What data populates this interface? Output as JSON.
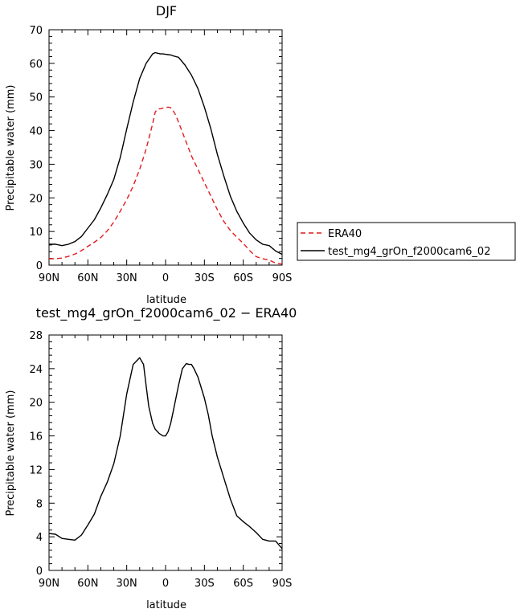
{
  "chart_data": [
    {
      "type": "line",
      "title": "DJF",
      "xlabel": "latitude",
      "ylabel": "Precipitable water (mm)",
      "xlim": [
        90,
        -90
      ],
      "ylim": [
        0,
        70
      ],
      "x_ticks": [
        90,
        60,
        30,
        0,
        -30,
        -60,
        -90
      ],
      "x_tick_labels": [
        "90N",
        "60N",
        "30N",
        "0",
        "30S",
        "60S",
        "90S"
      ],
      "y_ticks": [
        0,
        10,
        20,
        30,
        40,
        50,
        60,
        70
      ],
      "y_tick_labels": [
        "0",
        "10",
        "20",
        "30",
        "40",
        "50",
        "60",
        "70"
      ],
      "grid": false,
      "legend": "right",
      "series": [
        {
          "name": "ERA40",
          "color": "#e41a1c",
          "dash": "dashed",
          "x": [
            90,
            85,
            80,
            75,
            70,
            65,
            60,
            55,
            50,
            45,
            40,
            35,
            30,
            25,
            20,
            15,
            10,
            8,
            6,
            4,
            2,
            0,
            -2,
            -4,
            -6,
            -8,
            -10,
            -15,
            -20,
            -25,
            -30,
            -35,
            -40,
            -45,
            -50,
            -55,
            -60,
            -65,
            -70,
            -75,
            -80,
            -85,
            -90
          ],
          "y": [
            1.9,
            1.9,
            2.1,
            2.6,
            3.3,
            4.3,
            5.6,
            6.8,
            8.2,
            10.2,
            12.8,
            16.0,
            19.5,
            23.5,
            28.5,
            34.5,
            42.0,
            45.5,
            46.5,
            46.5,
            46.7,
            46.8,
            47.0,
            46.8,
            45.8,
            44.5,
            42.5,
            37.5,
            32.5,
            28.5,
            24.5,
            20.5,
            16.5,
            13.0,
            10.3,
            8.3,
            6.5,
            4.3,
            2.5,
            1.9,
            1.5,
            0.6,
            0.3
          ]
        },
        {
          "name": "test_mg4_grOn_f2000cam6_02",
          "color": "#000000",
          "dash": "solid",
          "x": [
            90,
            85,
            80,
            75,
            70,
            65,
            60,
            55,
            50,
            45,
            40,
            35,
            30,
            25,
            20,
            15,
            10,
            8,
            6,
            4,
            2,
            0,
            -2,
            -4,
            -6,
            -8,
            -10,
            -15,
            -20,
            -25,
            -30,
            -35,
            -40,
            -45,
            -50,
            -55,
            -60,
            -65,
            -70,
            -75,
            -80,
            -85,
            -90
          ],
          "y": [
            6.2,
            6.2,
            5.8,
            6.2,
            7.0,
            8.5,
            11.0,
            13.5,
            17.0,
            21.0,
            25.5,
            32.0,
            40.5,
            48.5,
            55.5,
            60.0,
            62.8,
            63.2,
            63.0,
            62.8,
            62.8,
            62.7,
            62.6,
            62.5,
            62.2,
            62.0,
            61.8,
            59.5,
            56.5,
            52.5,
            47.0,
            40.5,
            33.0,
            26.5,
            20.5,
            16.0,
            12.5,
            9.5,
            7.5,
            6.2,
            5.8,
            4.2,
            3.2
          ]
        }
      ]
    },
    {
      "type": "line",
      "title": "test_mg4_grOn_f2000cam6_02 − ERA40",
      "xlabel": "latitude",
      "ylabel": "Precipitable water (mm)",
      "xlim": [
        90,
        -90
      ],
      "ylim": [
        0,
        28
      ],
      "x_ticks": [
        90,
        60,
        30,
        0,
        -30,
        -60,
        -90
      ],
      "x_tick_labels": [
        "90N",
        "60N",
        "30N",
        "0",
        "30S",
        "60S",
        "90S"
      ],
      "y_ticks": [
        0,
        4,
        8,
        12,
        16,
        20,
        24,
        28
      ],
      "y_tick_labels": [
        "0",
        "4",
        "8",
        "12",
        "16",
        "20",
        "24",
        "28"
      ],
      "grid": false,
      "series": [
        {
          "color": "#000000",
          "dash": "solid",
          "x": [
            90,
            85,
            80,
            75,
            70,
            65,
            60,
            55,
            50,
            45,
            40,
            35,
            30,
            25,
            20,
            17,
            15,
            13,
            10,
            8,
            5,
            2,
            0,
            -2,
            -4,
            -6,
            -8,
            -10,
            -13,
            -16,
            -18,
            -20,
            -22,
            -25,
            -28,
            -30,
            -33,
            -36,
            -40,
            -45,
            -50,
            -55,
            -60,
            -65,
            -70,
            -75,
            -80,
            -85,
            -90
          ],
          "y": [
            4.4,
            4.3,
            3.8,
            3.7,
            3.6,
            4.2,
            5.4,
            6.7,
            8.8,
            10.5,
            12.7,
            16.0,
            21.0,
            24.5,
            25.3,
            24.5,
            22.0,
            19.5,
            17.5,
            16.8,
            16.3,
            16.0,
            16.0,
            16.5,
            17.5,
            19.0,
            20.5,
            22.0,
            24.0,
            24.6,
            24.5,
            24.5,
            24.0,
            23.0,
            21.5,
            20.5,
            18.5,
            16.0,
            13.5,
            11.0,
            8.5,
            6.5,
            5.8,
            5.2,
            4.5,
            3.7,
            3.5,
            3.5,
            2.6
          ]
        }
      ]
    }
  ]
}
